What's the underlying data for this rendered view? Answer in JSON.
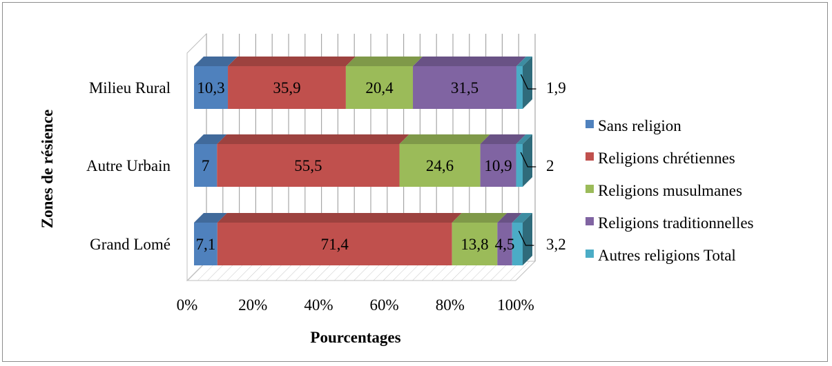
{
  "chart_data": {
    "type": "bar",
    "orientation": "horizontal",
    "stacked": "percent",
    "style": "3d",
    "title": "",
    "xlabel": "Pourcentages",
    "ylabel": "Zones de résience",
    "categories": [
      "Grand Lomé",
      "Autre Urbain",
      "Milieu Rural"
    ],
    "xlim": [
      0,
      100
    ],
    "x_ticks": [
      "0%",
      "20%",
      "40%",
      "60%",
      "80%",
      "100%"
    ],
    "grid": true,
    "legend_position": "right",
    "series": [
      {
        "name": "Sans religion",
        "color": "#4f81bd",
        "values": [
          7.1,
          7,
          10.3
        ],
        "labels": [
          "7,1",
          "7",
          "10,3"
        ]
      },
      {
        "name": "Religions chrétiennes",
        "color": "#c0504d",
        "values": [
          71.4,
          55.5,
          35.9
        ],
        "labels": [
          "71,4",
          "55,5",
          "35,9"
        ]
      },
      {
        "name": "Religions musulmanes",
        "color": "#9bbb59",
        "values": [
          13.8,
          24.6,
          20.4
        ],
        "labels": [
          "13,8",
          "24,6",
          "20,4"
        ]
      },
      {
        "name": "Religions traditionnelles",
        "color": "#8064a2",
        "values": [
          4.5,
          10.9,
          31.5
        ],
        "labels": [
          "4,5",
          "10,9",
          "31,5"
        ]
      },
      {
        "name": "Autres religions Total",
        "color": "#4bacc6",
        "values": [
          3.2,
          2,
          1.9
        ],
        "labels": [
          "3,2",
          "2",
          "1,9"
        ]
      }
    ]
  }
}
